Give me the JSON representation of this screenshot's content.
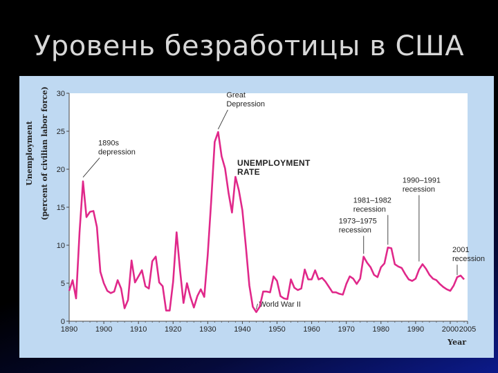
{
  "slide": {
    "title": "Уровень безработицы в США"
  },
  "chart_data": {
    "type": "line",
    "title": "",
    "xlabel": "Year",
    "ylabel_line1": "Unemployment",
    "ylabel_line2": "(percent of civilian labor force)",
    "series_label_line1": "UNEMPLOYMENT",
    "series_label_line2": "RATE",
    "xlim": [
      1890,
      2005
    ],
    "ylim": [
      0,
      30
    ],
    "x_ticks": [
      "1890",
      "1900",
      "1910",
      "1920",
      "1930",
      "1940",
      "1950",
      "1960",
      "1970",
      "1980",
      "1990",
      "2000",
      "2005"
    ],
    "y_ticks": [
      "0",
      "5",
      "10",
      "15",
      "20",
      "25",
      "30"
    ],
    "grid": false,
    "line_color": "#e0288a",
    "series": [
      {
        "x": [
          1890,
          1891,
          1892,
          1893,
          1894,
          1895,
          1896,
          1897,
          1898,
          1899,
          1900,
          1901,
          1902,
          1903,
          1904,
          1905,
          1906,
          1907,
          1908,
          1909,
          1910,
          1911,
          1912,
          1913,
          1914,
          1915,
          1916,
          1917,
          1918,
          1919,
          1920,
          1921,
          1922,
          1923,
          1924,
          1925,
          1926,
          1927,
          1928,
          1929,
          1930,
          1931,
          1932,
          1933,
          1934,
          1935,
          1936,
          1937,
          1938,
          1939,
          1940,
          1941,
          1942,
          1943,
          1944,
          1945,
          1946,
          1947,
          1948,
          1949,
          1950,
          1951,
          1952,
          1953,
          1954,
          1955,
          1956,
          1957,
          1958,
          1959,
          1960,
          1961,
          1962,
          1963,
          1964,
          1965,
          1966,
          1967,
          1968,
          1969,
          1970,
          1971,
          1972,
          1973,
          1974,
          1975,
          1976,
          1977,
          1978,
          1979,
          1980,
          1981,
          1982,
          1983,
          1984,
          1985,
          1986,
          1987,
          1988,
          1989,
          1990,
          1991,
          1992,
          1993,
          1994,
          1995,
          1996,
          1997,
          1998,
          1999,
          2000,
          2001,
          2002,
          2003,
          2004
        ],
        "y": [
          4.0,
          5.4,
          3.0,
          11.7,
          18.4,
          13.7,
          14.4,
          14.5,
          12.4,
          6.5,
          5.0,
          4.0,
          3.7,
          3.9,
          5.4,
          4.3,
          1.7,
          2.8,
          8.0,
          5.1,
          5.9,
          6.7,
          4.6,
          4.3,
          7.9,
          8.5,
          5.1,
          4.6,
          1.4,
          1.4,
          5.2,
          11.7,
          6.7,
          2.4,
          5.0,
          3.2,
          1.8,
          3.3,
          4.2,
          3.2,
          8.7,
          15.9,
          23.6,
          24.9,
          21.7,
          20.1,
          16.9,
          14.3,
          19.0,
          17.2,
          14.6,
          9.9,
          4.7,
          1.9,
          1.2,
          1.9,
          3.9,
          3.9,
          3.8,
          5.9,
          5.3,
          3.3,
          3.0,
          2.9,
          5.5,
          4.4,
          4.1,
          4.3,
          6.8,
          5.5,
          5.5,
          6.7,
          5.5,
          5.7,
          5.2,
          4.5,
          3.8,
          3.8,
          3.6,
          3.5,
          4.9,
          5.9,
          5.6,
          4.9,
          5.6,
          8.5,
          7.7,
          7.1,
          6.1,
          5.8,
          7.1,
          7.6,
          9.7,
          9.6,
          7.5,
          7.2,
          7.0,
          6.2,
          5.5,
          5.3,
          5.6,
          6.8,
          7.5,
          6.9,
          6.1,
          5.6,
          5.4,
          4.9,
          4.5,
          4.2,
          4.0,
          4.7,
          5.8,
          6.0,
          5.5
        ]
      }
    ],
    "annotations": [
      {
        "lines": [
          "1890s",
          "depression"
        ],
        "x": 1894,
        "y": 18.4
      },
      {
        "lines": [
          "Great",
          "Depression"
        ],
        "x": 1933,
        "y": 24.9
      },
      {
        "lines": [
          "World War II"
        ],
        "x": 1944,
        "y": 1.2
      },
      {
        "lines": [
          "1973–1975",
          "recession"
        ],
        "x": 1975,
        "y": 8.5
      },
      {
        "lines": [
          "1981–1982",
          "recession"
        ],
        "x": 1982,
        "y": 9.7
      },
      {
        "lines": [
          "1990–1991",
          "recession"
        ],
        "x": 1991,
        "y": 7.5
      },
      {
        "lines": [
          "2001",
          "recession"
        ],
        "x": 2002,
        "y": 5.8
      }
    ]
  }
}
